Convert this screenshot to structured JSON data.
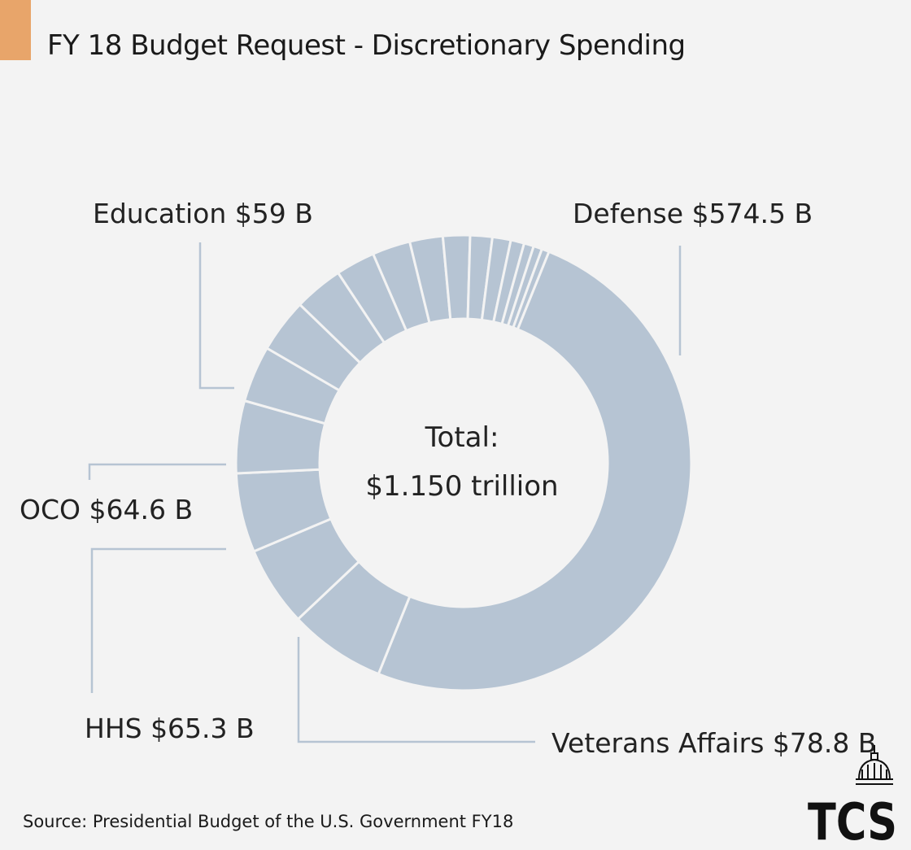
{
  "header": {
    "title": "FY 18 Budget Request - Discretionary Spending",
    "accent_color": "#e8a56a"
  },
  "chart_data": {
    "type": "pie",
    "style": "donut",
    "title": "FY 18 Budget Request - Discretionary Spending",
    "center_label": {
      "line1": "Total:",
      "line2": "$1.150 trillion"
    },
    "total_billions": 1150,
    "slice_color": "#b6c4d3",
    "callouts": [
      {
        "key": "defense",
        "text": "Defense $574.5 B"
      },
      {
        "key": "va",
        "text": "Veterans Affairs $78.8 B"
      },
      {
        "key": "hhs",
        "text": "HHS $65.3 B"
      },
      {
        "key": "oco",
        "text": "OCO $64.6 B"
      },
      {
        "key": "education",
        "text": "Education $59 B"
      }
    ],
    "slices_billions": [
      574.5,
      78.8,
      65.3,
      64.6,
      59,
      46,
      44,
      40,
      32,
      31,
      27,
      22,
      18,
      15,
      11,
      8,
      7,
      6
    ]
  },
  "footer": {
    "source": "Source: Presidential Budget of the U.S. Government FY18",
    "logo_text": "TCS"
  }
}
